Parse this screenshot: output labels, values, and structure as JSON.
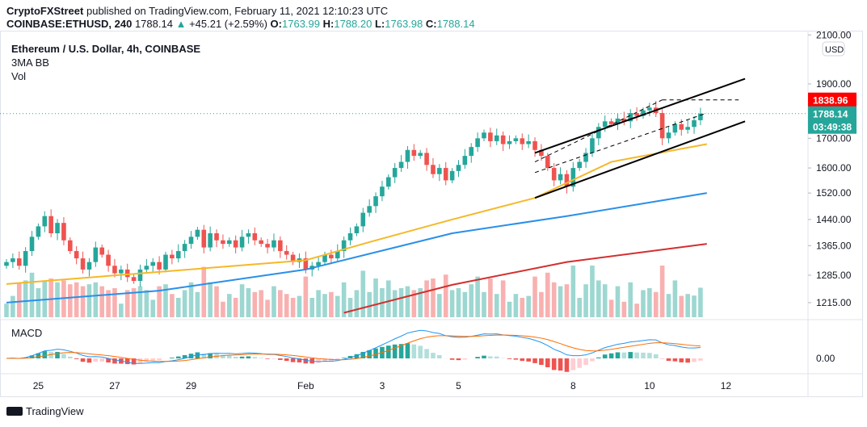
{
  "header": {
    "publisher": "CryptoFXStreet",
    "published_text": "published on TradingView.com, February 11, 2021 12:10:23 UTC",
    "symbol": "COINBASE:ETHUSD, 240",
    "last": "1788.14",
    "change": "+45.21 (+2.59%)",
    "o_label": "O:",
    "o": "1763.99",
    "h_label": "H:",
    "h": "1788.20",
    "l_label": "L:",
    "l": "1763.98",
    "c_label": "C:",
    "c": "1788.14"
  },
  "legend": {
    "title": "Ethereum / U.S. Dollar, 4h, COINBASE",
    "indicator": "3MA BB",
    "volume": "Vol",
    "macd": "MACD"
  },
  "currency": "USD",
  "badges": {
    "high_line": "1838.96",
    "price": "1788.14",
    "countdown": "03:49:38"
  },
  "logo": "TradingView",
  "colors": {
    "up": "#26a69a",
    "down": "#ef5350",
    "ma50": "#f5b829",
    "ma100": "#2a8fe8",
    "ma200": "#d32f2f",
    "badge_red": "#ff0000"
  },
  "chart_data": {
    "type": "candlestick",
    "scale": "log",
    "ylim": [
      1180,
      2150
    ],
    "yticks": [
      "2100.00",
      "1900.00",
      "1700.00",
      "1600.00",
      "1520.00",
      "1440.00",
      "1365.00",
      "1285.00",
      "1215.00"
    ],
    "macd_ticks": [
      "0.00"
    ],
    "xticks": [
      {
        "label": "25",
        "i": 5
      },
      {
        "label": "27",
        "i": 17
      },
      {
        "label": "29",
        "i": 29
      },
      {
        "label": "Feb",
        "i": 47
      },
      {
        "label": "3",
        "i": 59
      },
      {
        "label": "5",
        "i": 71
      },
      {
        "label": "8",
        "i": 89
      },
      {
        "label": "10",
        "i": 101
      },
      {
        "label": "12",
        "i": 113
      }
    ],
    "closes": [
      1320,
      1330,
      1310,
      1350,
      1390,
      1420,
      1450,
      1400,
      1430,
      1380,
      1350,
      1330,
      1300,
      1320,
      1360,
      1340,
      1310,
      1290,
      1300,
      1280,
      1270,
      1300,
      1310,
      1320,
      1300,
      1340,
      1330,
      1350,
      1370,
      1390,
      1410,
      1360,
      1400,
      1380,
      1370,
      1380,
      1360,
      1390,
      1400,
      1380,
      1370,
      1360,
      1380,
      1350,
      1340,
      1320,
      1330,
      1300,
      1310,
      1320,
      1340,
      1330,
      1350,
      1380,
      1400,
      1420,
      1460,
      1480,
      1510,
      1540,
      1570,
      1600,
      1620,
      1660,
      1640,
      1650,
      1610,
      1580,
      1600,
      1560,
      1590,
      1610,
      1640,
      1670,
      1700,
      1720,
      1690,
      1710,
      1680,
      1690,
      1700,
      1680,
      1690,
      1660,
      1640,
      1600,
      1560,
      1580,
      1540,
      1600,
      1620,
      1650,
      1700,
      1740,
      1760,
      1750,
      1770,
      1760,
      1790,
      1780,
      1800,
      1810,
      1790,
      1700,
      1720,
      1750,
      1730,
      1740,
      1763.99,
      1788.14
    ],
    "moving_averages": [
      {
        "color": "#f5b829",
        "points": [
          [
            0,
            1262
          ],
          [
            47,
            1325
          ],
          [
            57,
            1375
          ],
          [
            70,
            1440
          ],
          [
            83,
            1505
          ],
          [
            95,
            1620
          ],
          [
            110,
            1680
          ]
        ]
      },
      {
        "color": "#2a8fe8",
        "points": [
          [
            0,
            1215
          ],
          [
            24,
            1245
          ],
          [
            47,
            1300
          ],
          [
            70,
            1400
          ],
          [
            88,
            1450
          ],
          [
            110,
            1520
          ]
        ]
      },
      {
        "color": "#d32f2f",
        "points": [
          [
            53,
            1190
          ],
          [
            70,
            1260
          ],
          [
            88,
            1320
          ],
          [
            110,
            1370
          ]
        ]
      }
    ],
    "trendlines": [
      {
        "style": "solid",
        "from": [
          83,
          1650
        ],
        "to": [
          116,
          1920
        ]
      },
      {
        "style": "solid",
        "from": [
          83,
          1505
        ],
        "to": [
          116,
          1760
        ]
      },
      {
        "style": "dashed",
        "from": [
          83,
          1585
        ],
        "to": [
          110,
          1790
        ]
      },
      {
        "style": "dashed",
        "from": [
          83,
          1620
        ],
        "to": [
          103,
          1838.96
        ]
      },
      {
        "style": "dashed",
        "from": [
          103,
          1838.96
        ],
        "to": [
          115,
          1838.96
        ]
      }
    ]
  }
}
